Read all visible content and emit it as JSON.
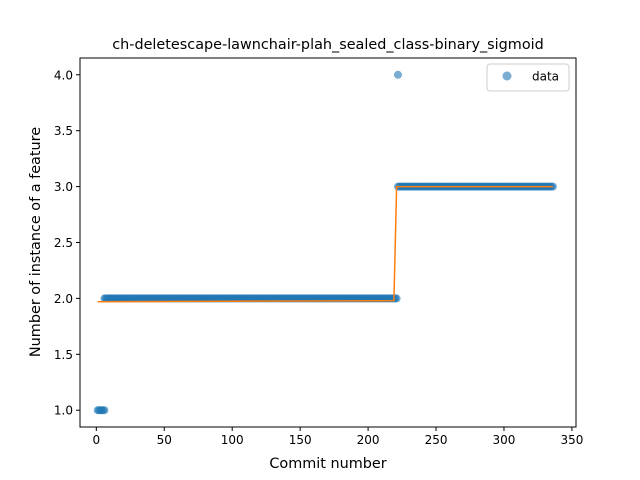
{
  "chart_data": {
    "type": "scatter",
    "title": "ch-deletescape-lawnchair-plah_sealed_class-binary_sigmoid",
    "xlabel": "Commit number",
    "ylabel": "Number of instance of a feature",
    "xlim": [
      -12,
      353
    ],
    "ylim": [
      0.85,
      4.15
    ],
    "xticks": [
      0,
      50,
      100,
      150,
      200,
      250,
      300,
      350
    ],
    "yticks": [
      1.0,
      1.5,
      2.0,
      2.5,
      3.0,
      3.5,
      4.0
    ],
    "xtick_labels": [
      "0",
      "50",
      "100",
      "150",
      "200",
      "250",
      "300",
      "350"
    ],
    "ytick_labels": [
      "1.0",
      "1.5",
      "2.0",
      "2.5",
      "3.0",
      "3.5",
      "4.0"
    ],
    "grid": false,
    "legend": {
      "position": "top-right",
      "entries": [
        "data"
      ]
    },
    "colors": {
      "data": "#1f77b4",
      "fit": "#ff7f0e"
    },
    "series": [
      {
        "name": "data",
        "kind": "scatter",
        "segments": [
          {
            "x_start": 1,
            "x_end": 6,
            "y": 1.0
          },
          {
            "x_start": 6,
            "x_end": 221,
            "y": 2.0
          },
          {
            "x_start": 222,
            "x_end": 222,
            "y": 4.0
          },
          {
            "x_start": 222,
            "x_end": 336,
            "y": 3.0
          }
        ]
      },
      {
        "kind": "line",
        "points": [
          [
            1,
            1.97
          ],
          [
            219,
            1.98
          ],
          [
            221,
            3.0
          ],
          [
            336,
            3.0
          ]
        ]
      }
    ]
  }
}
